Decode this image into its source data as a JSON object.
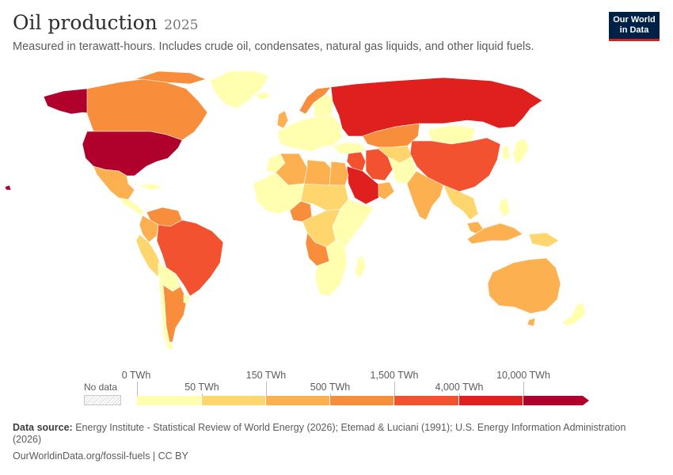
{
  "header": {
    "title": "Oil production",
    "year": "2025",
    "subtitle": "Measured in terawatt-hours. Includes crude oil, condensates, natural gas liquids, and other liquid fuels."
  },
  "logo": {
    "line1": "Our World",
    "line2": "in Data"
  },
  "legend": {
    "no_data_label": "No data",
    "top_labels": [
      "0 TWh",
      "150 TWh",
      "1,500 TWh",
      "10,000 TWh"
    ],
    "mid_labels": [
      "50 TWh",
      "500 TWh",
      "4,000 TWh"
    ],
    "bins": [
      {
        "from": "0 TWh",
        "to": "50 TWh",
        "color": "#ffffaf"
      },
      {
        "from": "50 TWh",
        "to": "150 TWh",
        "color": "#ffd66e"
      },
      {
        "from": "150 TWh",
        "to": "500 TWh",
        "color": "#fdb050"
      },
      {
        "from": "500 TWh",
        "to": "1,500 TWh",
        "color": "#f88d3c"
      },
      {
        "from": "1,500 TWh",
        "to": "4,000 TWh",
        "color": "#f25230"
      },
      {
        "from": "4,000 TWh",
        "to": "10,000 TWh",
        "color": "#e0201f"
      },
      {
        "from": "10,000 TWh",
        "to": "",
        "color": "#b0002c"
      }
    ]
  },
  "footer": {
    "source_label": "Data source:",
    "source_text": "Energy Institute - Statistical Review of World Energy (2026); Etemad & Luciani (1991); U.S. Energy Information Administration (2026)",
    "url": "OurWorldinData.org/fossil-fuels | CC BY"
  },
  "map_data": {
    "color_scale": [
      "#ffffaf",
      "#ffd66e",
      "#fdb050",
      "#f88d3c",
      "#f25230",
      "#e0201f",
      "#b0002c"
    ],
    "no_data_color": "#e8e8e8",
    "regions": [
      {
        "name": "United States",
        "bin": 6
      },
      {
        "name": "Russia",
        "bin": 5
      },
      {
        "name": "Saudi Arabia",
        "bin": 5
      },
      {
        "name": "Canada",
        "bin": 4
      },
      {
        "name": "Brazil",
        "bin": 4
      },
      {
        "name": "China",
        "bin": 4
      },
      {
        "name": "Iran",
        "bin": 4
      },
      {
        "name": "Iraq",
        "bin": 4
      },
      {
        "name": "Mexico",
        "bin": 3
      },
      {
        "name": "Venezuela",
        "bin": 3
      },
      {
        "name": "Argentina",
        "bin": 3
      },
      {
        "name": "Norway",
        "bin": 3
      },
      {
        "name": "Kazakhstan",
        "bin": 3
      },
      {
        "name": "Nigeria",
        "bin": 3
      },
      {
        "name": "Angola",
        "bin": 3
      },
      {
        "name": "Libya",
        "bin": 2
      },
      {
        "name": "Algeria",
        "bin": 2
      },
      {
        "name": "Egypt",
        "bin": 2
      },
      {
        "name": "India",
        "bin": 2
      },
      {
        "name": "Indonesia",
        "bin": 2
      },
      {
        "name": "Australia",
        "bin": 2
      },
      {
        "name": "Colombia",
        "bin": 2
      },
      {
        "name": "Ecuador",
        "bin": 2
      },
      {
        "name": "Malaysia",
        "bin": 2
      },
      {
        "name": "United Kingdom",
        "bin": 2
      }
    ]
  }
}
